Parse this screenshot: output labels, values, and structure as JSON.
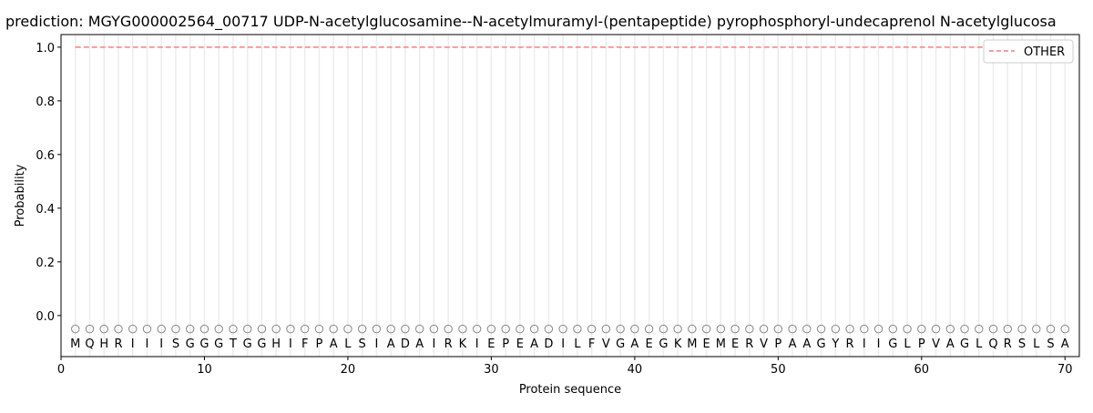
{
  "chart_data": {
    "type": "line",
    "title": "prediction: MGYG000002564_00717 UDP-N-acetylglucosamine--N-acetylmuramyl-(pentapeptide) pyrophosphoryl-undecaprenol N-acetylglucosa",
    "xlabel": "Protein sequence",
    "ylabel": "Probability",
    "xlim": [
      0,
      71
    ],
    "ylim": [
      -0.153,
      1.047
    ],
    "xticks": [
      0,
      10,
      20,
      30,
      40,
      50,
      60,
      70
    ],
    "yticks": [
      0.0,
      0.2,
      0.4,
      0.6,
      0.8,
      1.0
    ],
    "grid": "vertical lines at each residue",
    "legend_position": "top-right",
    "sequence": [
      "M",
      "Q",
      "H",
      "R",
      "I",
      "I",
      "I",
      "S",
      "G",
      "G",
      "G",
      "T",
      "G",
      "G",
      "H",
      "I",
      "F",
      "P",
      "A",
      "L",
      "S",
      "I",
      "A",
      "D",
      "A",
      "I",
      "R",
      "K",
      "I",
      "E",
      "P",
      "E",
      "A",
      "D",
      "I",
      "L",
      "F",
      "V",
      "G",
      "A",
      "E",
      "G",
      "K",
      "M",
      "E",
      "M",
      "E",
      "R",
      "V",
      "P",
      "A",
      "A",
      "G",
      "Y",
      "R",
      "I",
      "I",
      "G",
      "L",
      "P",
      "V",
      "A",
      "G",
      "L",
      "Q",
      "R",
      "S",
      "L",
      "S",
      "A"
    ],
    "marker_y": -0.05,
    "series": [
      {
        "name": "OTHER",
        "color": "#f08080",
        "style": "dashed",
        "x_range": [
          1,
          70
        ],
        "value": 1.0
      }
    ]
  }
}
